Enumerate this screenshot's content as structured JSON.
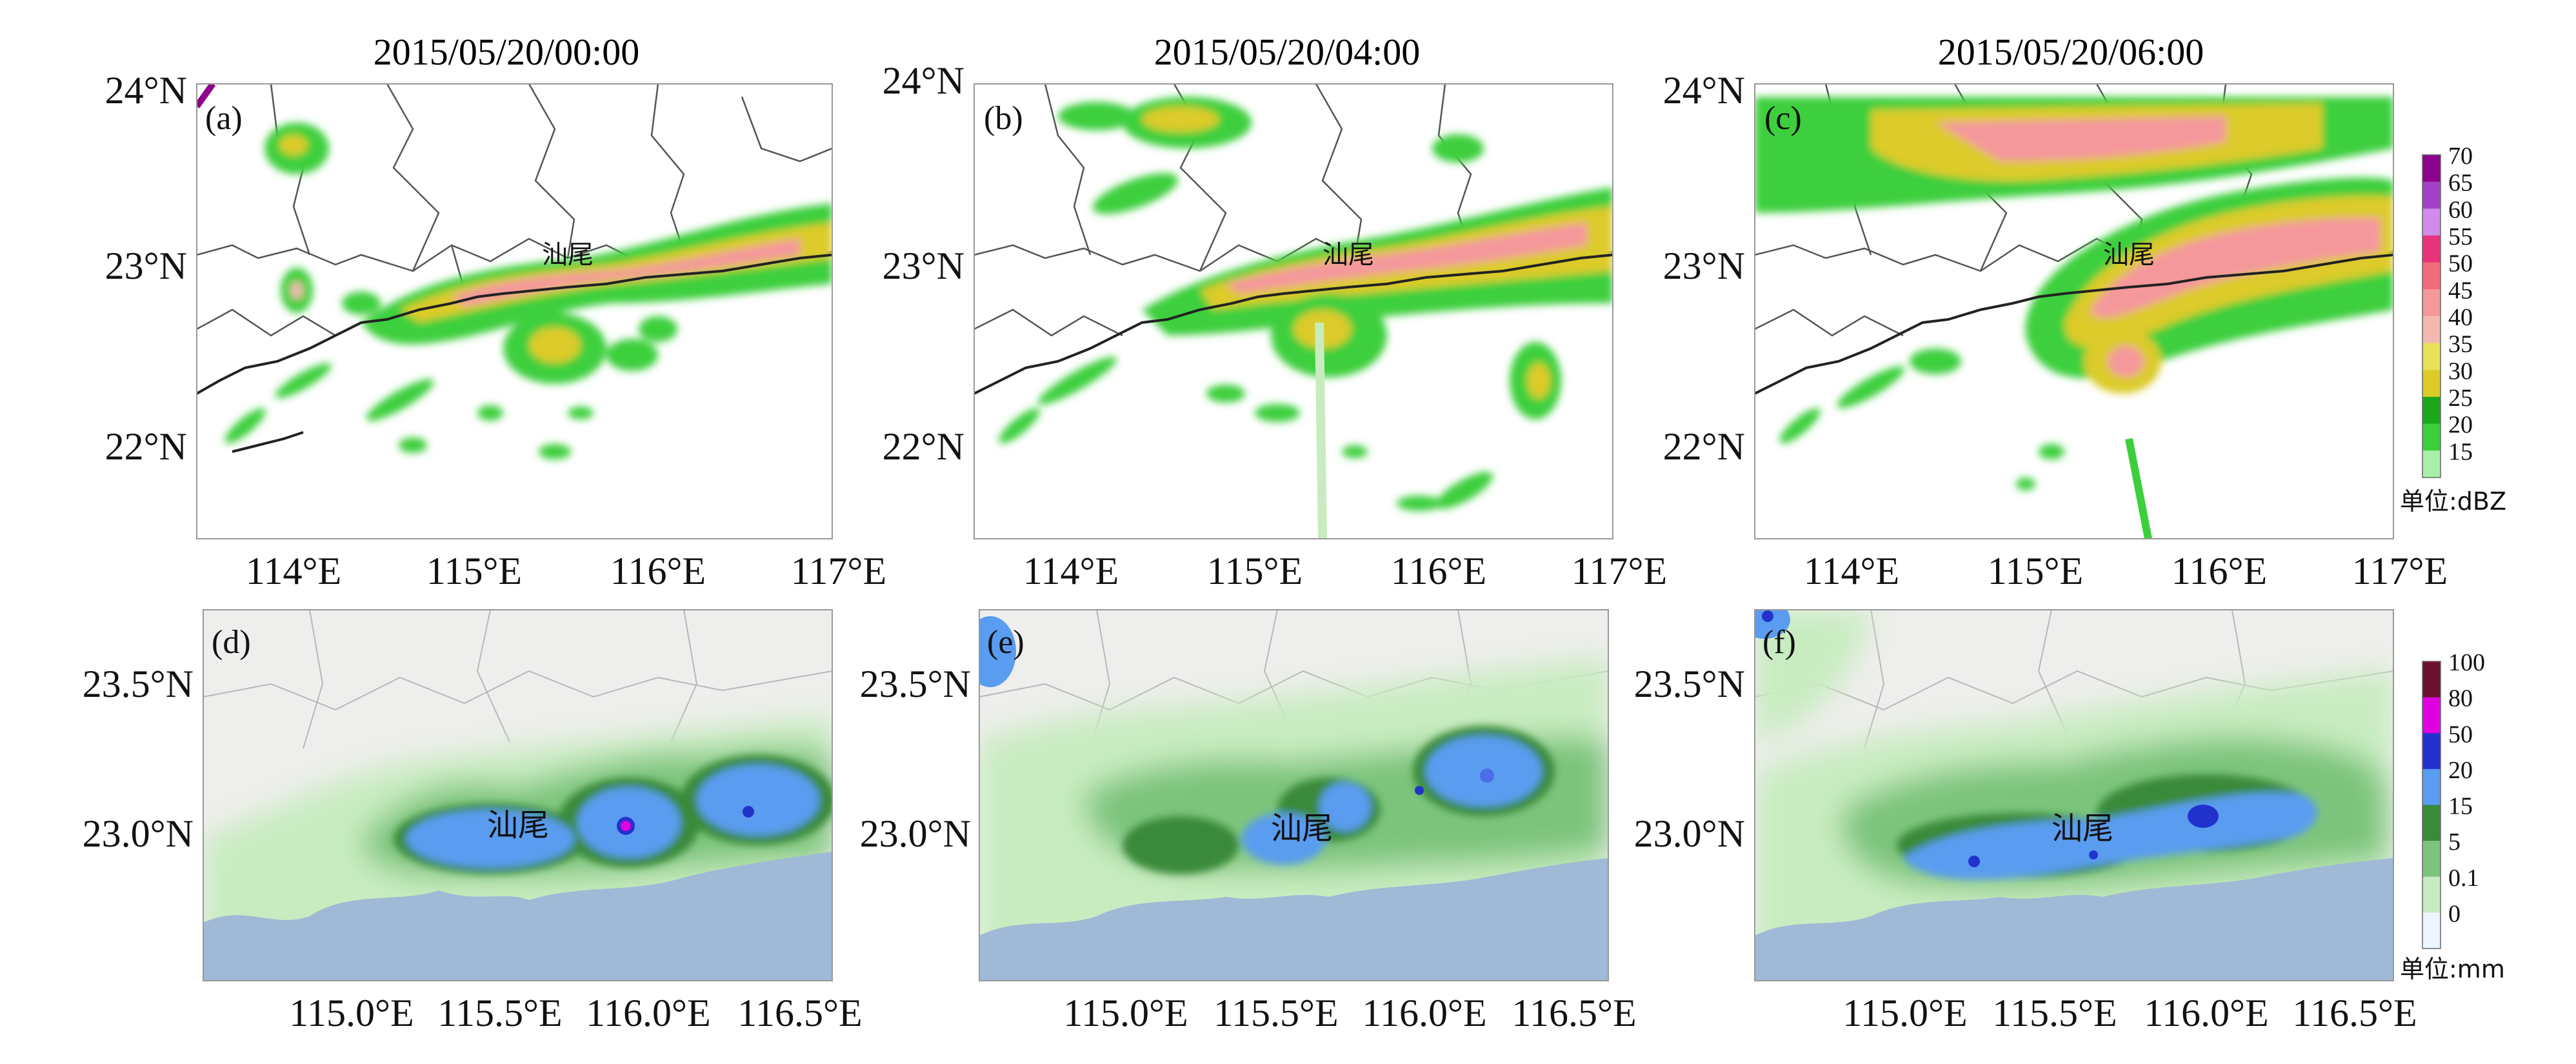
{
  "top_row": {
    "timestamps": [
      "2015/05/20/00:00",
      "2015/05/20/04:00",
      "2015/05/20/06:00"
    ],
    "panel_labels": [
      "(a)",
      "(b)",
      "(c)"
    ],
    "lat_labels": [
      "24°N",
      "23°N",
      "22°N"
    ],
    "lon_labels": [
      "114°E",
      "115°E",
      "116°E",
      "117°E"
    ],
    "city_label": "汕尾",
    "legend": {
      "ticks": [
        "70",
        "65",
        "60",
        "55",
        "50",
        "45",
        "40",
        "35",
        "30",
        "25",
        "20",
        "15"
      ],
      "colors": [
        "#8e008e",
        "#a640c6",
        "#cf8cea",
        "#e8337a",
        "#f26b7d",
        "#f5989c",
        "#f2b9b0",
        "#e8e25a",
        "#dccb2a",
        "#1aa81a",
        "#3ccf3c",
        "#a8f0a8"
      ],
      "unit": "单位:dBZ"
    }
  },
  "bottom_row": {
    "panel_labels": [
      "(d)",
      "(e)",
      "(f)"
    ],
    "lat_labels": [
      "23.5°N",
      "23.0°N"
    ],
    "lon_labels": [
      "115.0°E",
      "115.5°E",
      "116.0°E",
      "116.5°E"
    ],
    "city_label": "汕尾",
    "legend": {
      "ticks": [
        "100",
        "80",
        "50",
        "20",
        "15",
        "5",
        "0.1",
        "0"
      ],
      "colors": [
        "#6e1030",
        "#e000e0",
        "#2233cc",
        "#5a9cf0",
        "#3a8a3a",
        "#7cc47c",
        "#c8ecc0",
        "#eef6ff"
      ],
      "unit": "单位:mm"
    }
  }
}
